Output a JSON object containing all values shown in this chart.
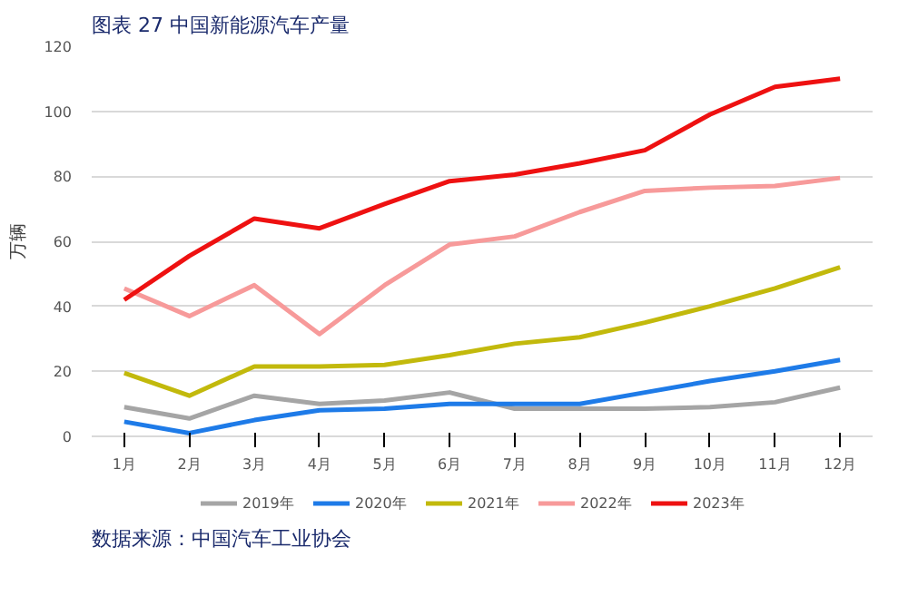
{
  "chart_data": {
    "type": "line",
    "title": "图表 27 中国新能源汽车产量",
    "ylabel": "万辆",
    "categories": [
      "1月",
      "2月",
      "3月",
      "4月",
      "5月",
      "6月",
      "7月",
      "8月",
      "9月",
      "10月",
      "11月",
      "12月"
    ],
    "series": [
      {
        "name": "2019年",
        "color": "#a5a5a5",
        "values": [
          9,
          5.5,
          12.5,
          10,
          11,
          13.5,
          8.5,
          8.5,
          8.5,
          9,
          10.5,
          15
        ]
      },
      {
        "name": "2020年",
        "color": "#1e7be8",
        "values": [
          4.5,
          1,
          5,
          8,
          8.5,
          10,
          10,
          10,
          13.5,
          17,
          20,
          23.5
        ]
      },
      {
        "name": "2021年",
        "color": "#c2b90c",
        "values": [
          19.5,
          12.5,
          21.5,
          21.5,
          22,
          25,
          28.5,
          30.5,
          35,
          40,
          45.5,
          52
        ]
      },
      {
        "name": "2022年",
        "color": "#f79a9a",
        "values": [
          45.5,
          37,
          46.5,
          31.5,
          46.5,
          59,
          61.5,
          69,
          75.5,
          76.5,
          77,
          79.5
        ]
      },
      {
        "name": "2023年",
        "color": "#ee1111",
        "values": [
          42,
          55.5,
          67,
          64,
          71.5,
          78.5,
          80.5,
          84,
          88,
          99,
          107.5,
          110
        ]
      }
    ],
    "ylim": [
      0,
      120
    ],
    "yticks": [
      0,
      20,
      40,
      60,
      80,
      100,
      120
    ],
    "grid": "y",
    "legend": "bottom",
    "annotations": [
      "数据来源：中国汽车工业协会"
    ]
  }
}
